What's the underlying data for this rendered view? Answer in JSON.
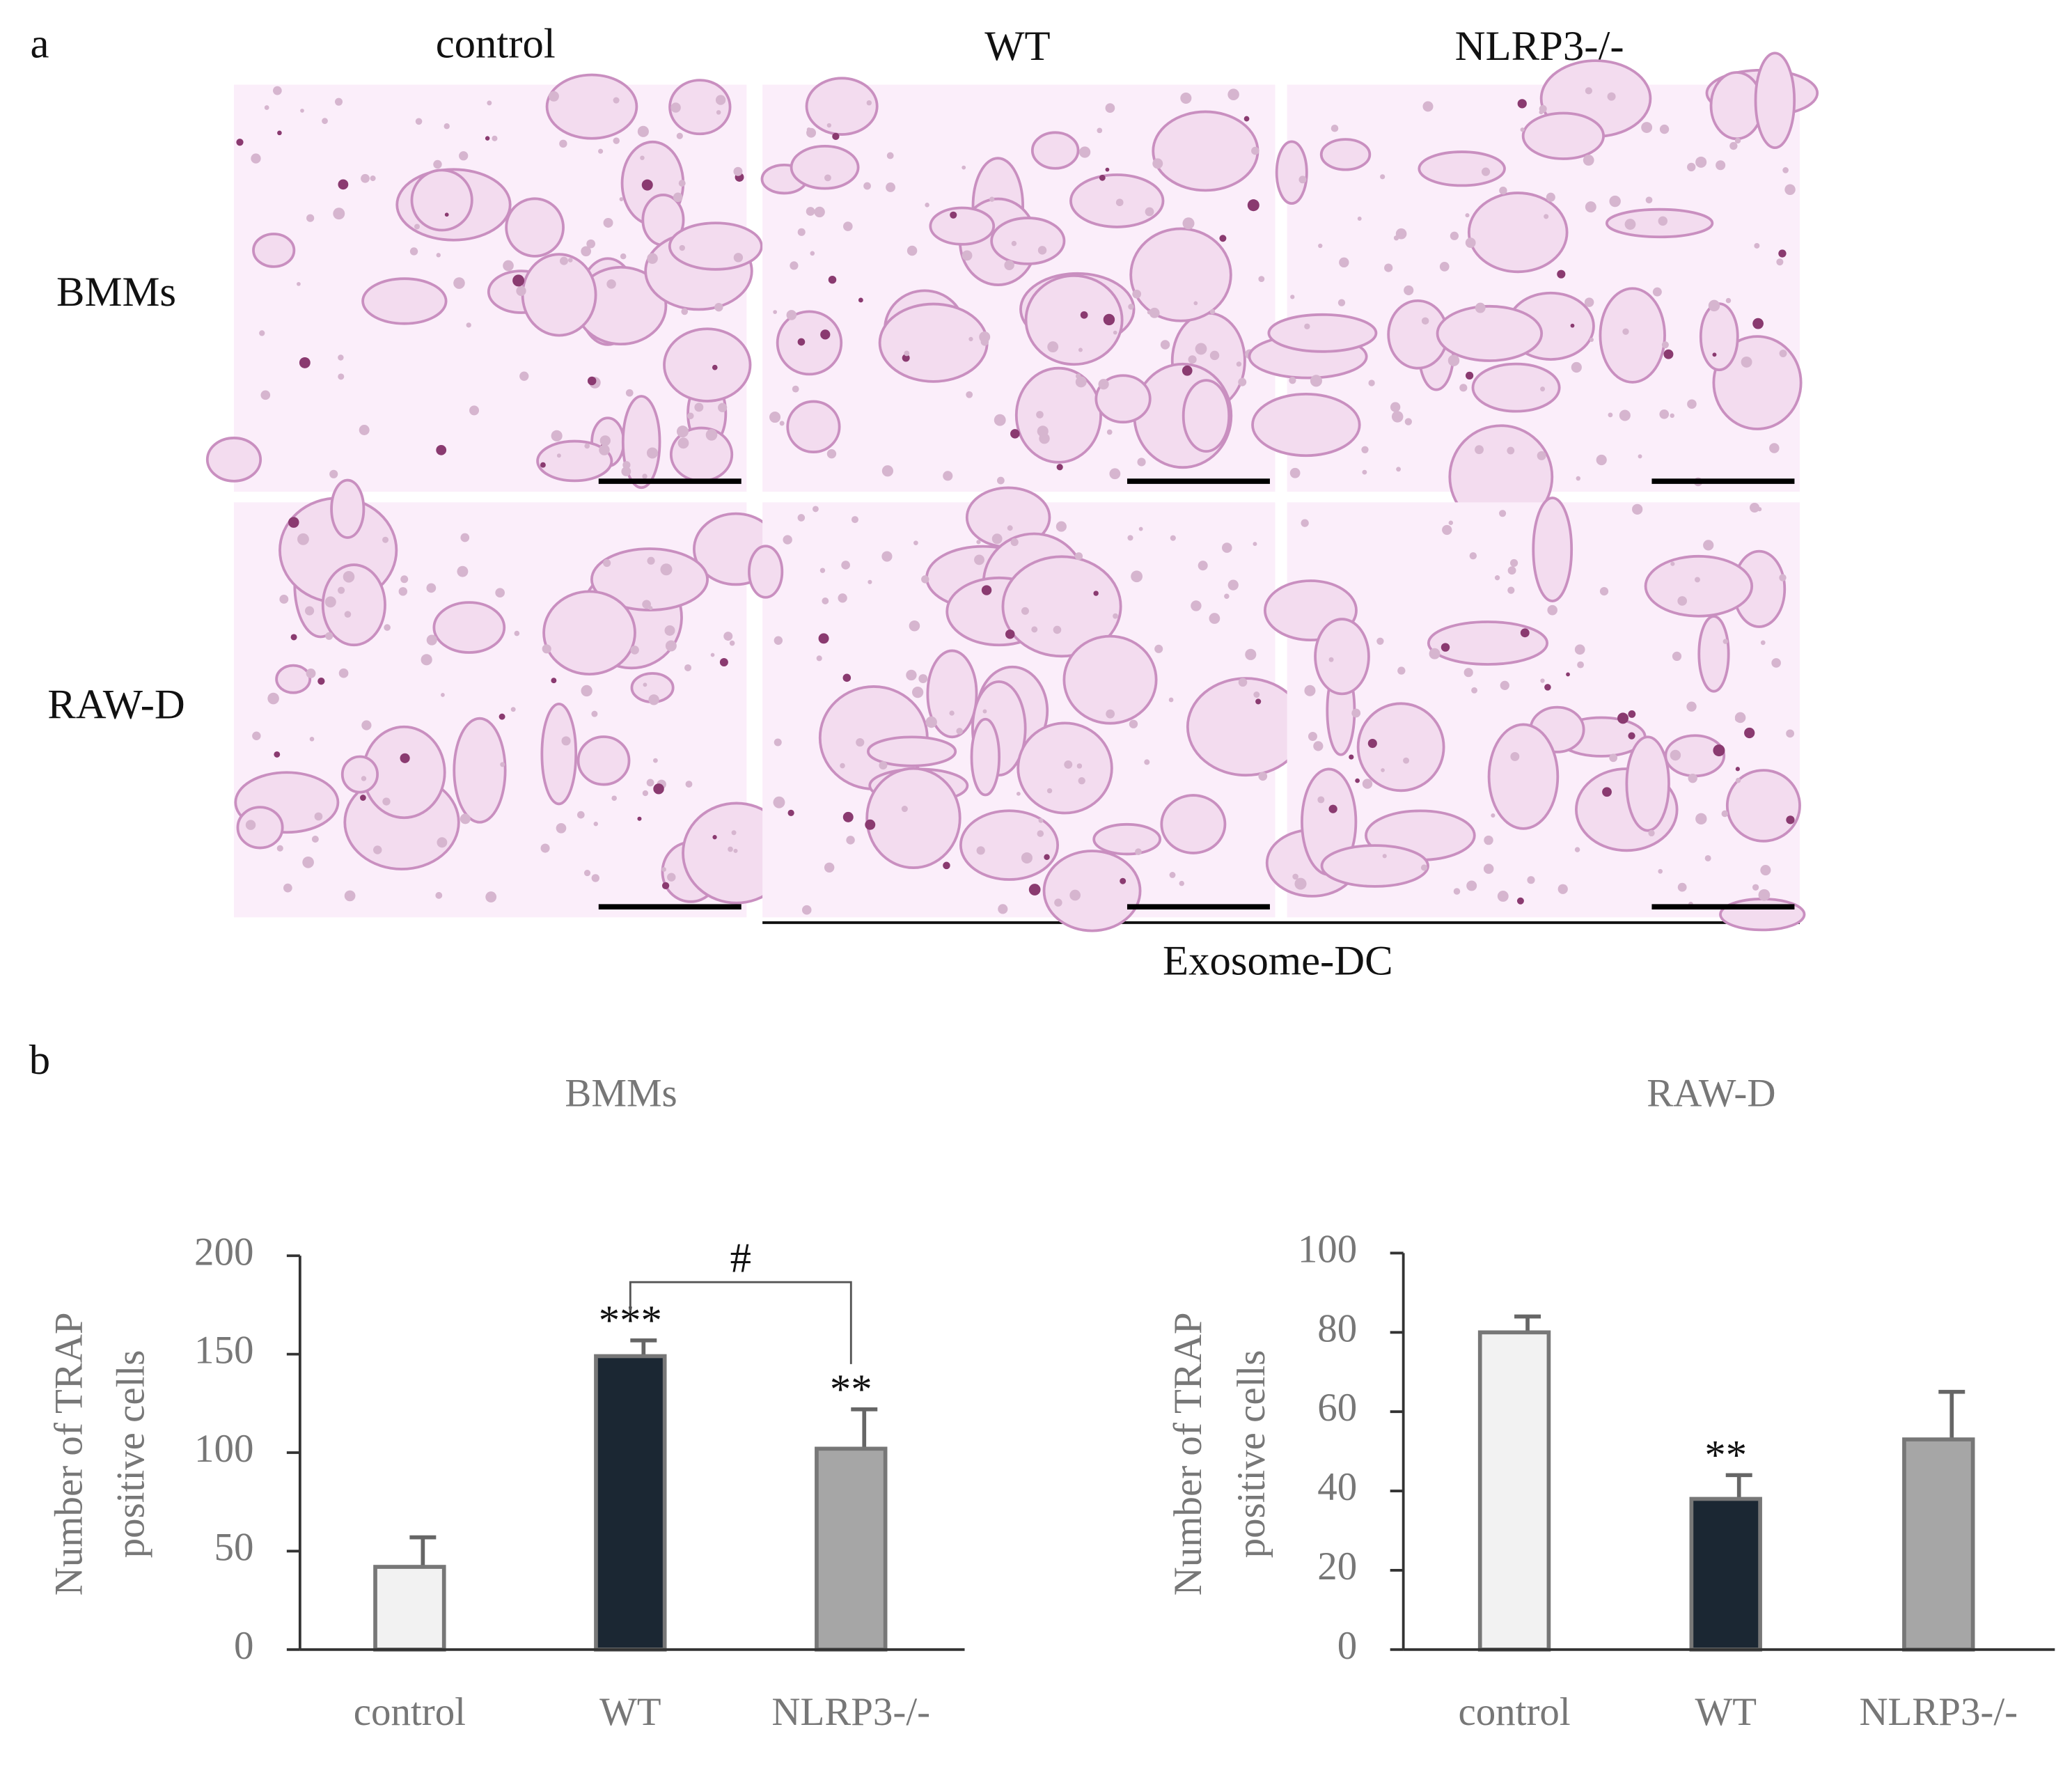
{
  "figure": {
    "panel_a": {
      "label": "a",
      "columns": [
        "control",
        "WT",
        "NLRP3-/-"
      ],
      "rows": [
        "BMMs",
        "RAW-D"
      ],
      "group_label": "Exosome-DC"
    },
    "panel_b_label": "b"
  },
  "chart_data": [
    {
      "type": "bar",
      "title": "BMMs",
      "ylabel": [
        "Number of TRAP",
        "positive cells"
      ],
      "categories": [
        "control",
        "WT",
        "NLRP3-/-"
      ],
      "values": [
        42,
        149,
        102
      ],
      "errors": [
        15,
        8,
        20
      ],
      "colors": [
        "#f2f2f2",
        "#1b2733",
        "#a6a6a6"
      ],
      "significance": [
        null,
        "***",
        "**"
      ],
      "bracket_label": "#",
      "ylim": [
        0,
        200
      ],
      "yticks": [
        0,
        50,
        100,
        150,
        200
      ]
    },
    {
      "type": "bar",
      "title": "RAW-D",
      "ylabel": [
        "Number of TRAP",
        "positive cells"
      ],
      "categories": [
        "control",
        "WT",
        "NLRP3-/-"
      ],
      "values": [
        80,
        38,
        53
      ],
      "errors": [
        4,
        6,
        12
      ],
      "colors": [
        "#f2f2f2",
        "#1b2733",
        "#a6a6a6"
      ],
      "significance": [
        null,
        "**",
        null
      ],
      "ylim": [
        0,
        100
      ],
      "yticks": [
        0,
        20,
        40,
        60,
        80,
        100
      ]
    }
  ]
}
